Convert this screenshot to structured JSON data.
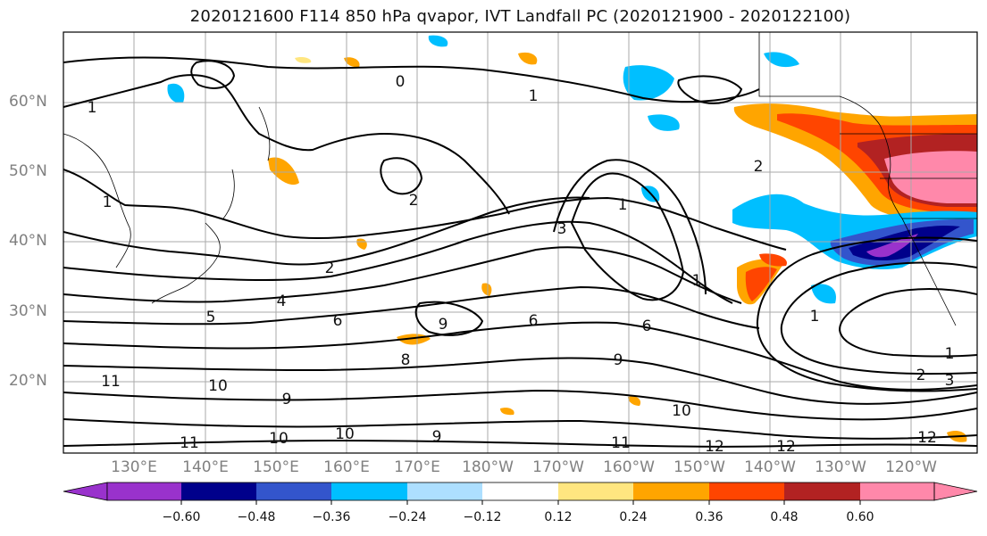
{
  "title": "2020121600 F114 850 hPa qvapor, IVT Landfall PC (2020121900 - 2020122100)",
  "lat_labels": [
    "60°N",
    "50°N",
    "40°N",
    "30°N",
    "20°N"
  ],
  "lon_labels": [
    "130°E",
    "140°E",
    "150°E",
    "160°E",
    "170°E",
    "180°W",
    "170°W",
    "160°W",
    "150°W",
    "140°W",
    "130°W",
    "120°W"
  ],
  "colorbar": {
    "colors": [
      "#9932CC",
      "#00008B",
      "#3355CC",
      "#00BFFF",
      "#ADDFFF",
      "#FFFFFF",
      "#FFE680",
      "#FFA500",
      "#FF4500",
      "#B22222",
      "#FF88AA"
    ],
    "tick_labels": [
      "−0.60",
      "−0.48",
      "−0.36",
      "−0.24",
      "−0.12",
      "0.12",
      "0.24",
      "0.36",
      "0.48",
      "0.60"
    ]
  },
  "contour_labels": [
    "0",
    "1",
    "1",
    "1",
    "2",
    "2",
    "2",
    "3",
    "4",
    "5",
    "6",
    "6",
    "6",
    "9",
    "8",
    "9",
    "10",
    "11",
    "9",
    "10",
    "10",
    "11",
    "9",
    "10",
    "11",
    "12",
    "12",
    "12",
    "1",
    "2",
    "3",
    "1",
    "1",
    "1"
  ]
}
